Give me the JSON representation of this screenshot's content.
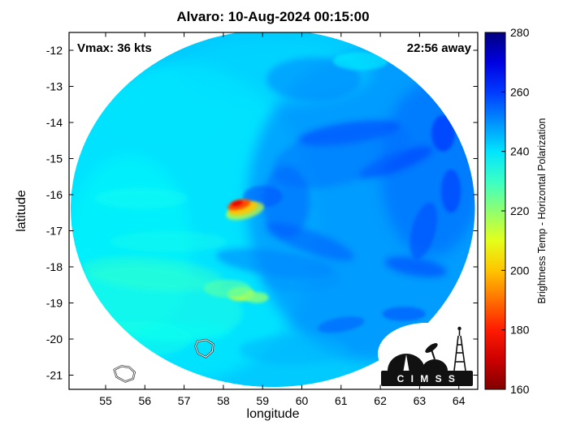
{
  "title": "Alvaro: 10-Aug-2024 00:15:00",
  "annotations": {
    "vmax": "Vmax: 36 kts",
    "time_away": "22:56 away"
  },
  "axes": {
    "xlabel": "longitude",
    "ylabel": "latitude",
    "x_ticks": [
      "55",
      "56",
      "57",
      "58",
      "59",
      "60",
      "61",
      "62",
      "63",
      "64"
    ],
    "y_ticks": [
      "-12",
      "-13",
      "-14",
      "-15",
      "-16",
      "-17",
      "-18",
      "-19",
      "-20",
      "-21"
    ]
  },
  "colorbar": {
    "label": "Brightness Temp - Horizontal Polarization",
    "ticks": [
      "160",
      "180",
      "200",
      "220",
      "240",
      "260",
      "280"
    ],
    "min": 160,
    "max": 280,
    "colormap": "jet-reversed"
  },
  "logo": {
    "text": "C I M S S"
  },
  "chart_data": {
    "type": "heatmap",
    "title": "Alvaro: 10-Aug-2024 00:15:00",
    "xlabel": "longitude",
    "ylabel": "latitude",
    "x_range": [
      54.1,
      64.5
    ],
    "y_range": [
      -21.4,
      -11.5
    ],
    "colorbar_label": "Brightness Temp - Horizontal Polarization",
    "value_range": [
      160,
      280
    ],
    "storm": {
      "name": "Alvaro",
      "vmax_kts": 36,
      "time": "10-Aug-2024 00:15:00",
      "overpass_offset": "22:56 away"
    },
    "swath": {
      "center_lon": 59.26,
      "center_lat": -16.38,
      "radius_lon_deg": 5.15,
      "radius_lat_deg": 4.95,
      "background_tb": 243
    },
    "blobs_format": [
      "lon",
      "lat",
      "rx_deg",
      "ry_deg",
      "rot_deg",
      "tb_K",
      "opacity",
      "blur"
    ],
    "blobs": [
      [
        57.0,
        -16.8,
        3.4,
        4.4,
        0,
        238,
        0.55,
        "lg"
      ],
      [
        55.6,
        -17.5,
        1.6,
        2.6,
        0,
        236,
        0.45,
        "lg"
      ],
      [
        61.8,
        -16.3,
        3.2,
        4.3,
        0,
        252,
        0.6,
        "lg"
      ],
      [
        63.3,
        -15.3,
        1.3,
        2.4,
        0,
        256,
        0.5,
        "lg"
      ],
      [
        56.5,
        -13.6,
        1.8,
        1.2,
        0,
        240,
        0.4,
        "lg"
      ],
      [
        59.3,
        -12.6,
        2.5,
        0.9,
        0,
        241,
        0.5,
        "lg"
      ],
      [
        56.3,
        -19.0,
        2.2,
        1.0,
        8,
        233,
        0.5,
        "md"
      ],
      [
        56.2,
        -18.2,
        1.8,
        0.45,
        5,
        231,
        0.5,
        "md"
      ],
      [
        55.8,
        -20.0,
        1.4,
        0.5,
        0,
        234,
        0.5,
        "md"
      ],
      [
        55.9,
        -16.1,
        1.2,
        0.3,
        0,
        235,
        0.45,
        "md"
      ],
      [
        56.6,
        -17.3,
        1.5,
        0.3,
        0,
        234,
        0.4,
        "md"
      ],
      [
        57.0,
        -19.8,
        1.2,
        0.3,
        0,
        236,
        0.4,
        "md"
      ],
      [
        61.2,
        -14.3,
        1.3,
        0.28,
        -8,
        261,
        0.55,
        "md"
      ],
      [
        62.4,
        -15.1,
        1.0,
        0.25,
        -20,
        261,
        0.5,
        "md"
      ],
      [
        61.0,
        -14.9,
        1.8,
        0.8,
        -15,
        254,
        0.45,
        "md"
      ],
      [
        60.3,
        -12.8,
        1.2,
        0.6,
        0,
        252,
        0.5,
        "md"
      ],
      [
        59.6,
        -16.2,
        0.6,
        1.0,
        0,
        256,
        0.5,
        "md"
      ],
      [
        60.2,
        -17.3,
        1.2,
        0.3,
        20,
        257,
        0.5,
        "md"
      ],
      [
        59.3,
        -17.9,
        1.5,
        0.35,
        8,
        252,
        0.55,
        "md"
      ],
      [
        62.9,
        -18.0,
        0.8,
        0.25,
        10,
        261,
        0.5,
        "md"
      ],
      [
        60.0,
        -18.3,
        1.0,
        0.4,
        0,
        250,
        0.4,
        "md"
      ],
      [
        59.8,
        -20.3,
        1.4,
        0.4,
        0,
        246,
        0.5,
        "md"
      ],
      [
        63.6,
        -14.3,
        0.3,
        0.5,
        0,
        263,
        0.55,
        "sm"
      ],
      [
        63.8,
        -15.9,
        0.25,
        0.6,
        0,
        262,
        0.5,
        "sm"
      ],
      [
        63.1,
        -17.0,
        0.3,
        0.8,
        15,
        259,
        0.5,
        "sm"
      ],
      [
        62.6,
        -19.3,
        0.55,
        0.2,
        0,
        259,
        0.5,
        "sm"
      ],
      [
        61.0,
        -19.6,
        0.6,
        0.2,
        -10,
        257,
        0.5,
        "sm"
      ],
      [
        61.5,
        -12.3,
        0.7,
        0.25,
        0,
        239,
        0.65,
        "sm"
      ],
      [
        58.45,
        -18.75,
        0.35,
        0.2,
        0,
        215,
        0.9,
        "sm"
      ],
      [
        58.85,
        -18.85,
        0.3,
        0.15,
        0,
        221,
        0.85,
        "sm"
      ],
      [
        58.1,
        -18.6,
        0.6,
        0.25,
        0,
        227,
        0.7,
        "sm"
      ],
      [
        59.0,
        -16.05,
        0.5,
        0.3,
        0,
        257,
        0.55,
        "sm"
      ],
      [
        58.55,
        -16.45,
        0.5,
        0.22,
        -15,
        212,
        0.7,
        "sm"
      ],
      [
        58.5,
        -16.38,
        0.38,
        0.17,
        -15,
        200,
        0.9,
        "sm"
      ],
      [
        58.4,
        -16.28,
        0.3,
        0.13,
        -15,
        186,
        1,
        "sm"
      ],
      [
        58.35,
        -16.24,
        0.15,
        0.07,
        -15,
        174,
        1,
        "sm"
      ]
    ],
    "coastlines": [
      {
        "name": "island-west",
        "points": [
          [
            55.22,
            -20.85
          ],
          [
            55.4,
            -20.75
          ],
          [
            55.6,
            -20.78
          ],
          [
            55.74,
            -20.92
          ],
          [
            55.7,
            -21.1
          ],
          [
            55.5,
            -21.18
          ],
          [
            55.28,
            -21.05
          ]
        ]
      },
      {
        "name": "island-east",
        "points": [
          [
            57.34,
            -20.06
          ],
          [
            57.56,
            -20.02
          ],
          [
            57.74,
            -20.14
          ],
          [
            57.72,
            -20.34
          ],
          [
            57.55,
            -20.5
          ],
          [
            57.36,
            -20.4
          ],
          [
            57.29,
            -20.2
          ]
        ]
      }
    ]
  }
}
